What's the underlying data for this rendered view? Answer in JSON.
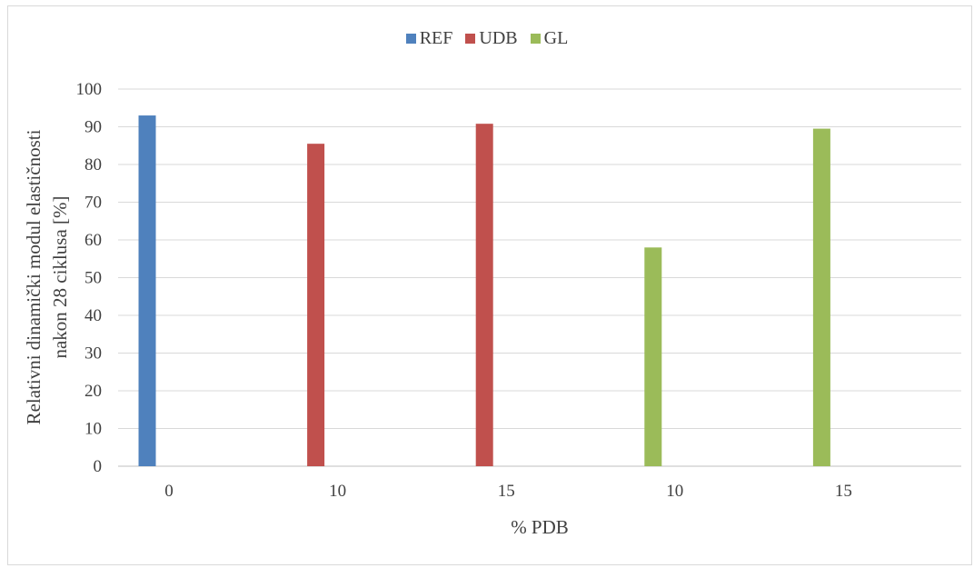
{
  "chart_data": {
    "type": "bar",
    "categories": [
      "0",
      "10",
      "15",
      "10",
      "15"
    ],
    "series": [
      {
        "name": "REF",
        "color": "#4f81bd",
        "values": [
          93,
          null,
          null,
          null,
          null
        ]
      },
      {
        "name": "UDB",
        "color": "#c0504d",
        "values": [
          null,
          85.5,
          90.8,
          null,
          null
        ]
      },
      {
        "name": "GL",
        "color": "#9bbb59",
        "values": [
          null,
          null,
          null,
          58,
          89.5
        ]
      }
    ],
    "title": "",
    "xlabel": "% PDB",
    "ylabel_lines": [
      "Relativni dinamički modul elastičnosti",
      "nakon 28 ciklusa [%]"
    ],
    "ylim": [
      0,
      100
    ],
    "yticks": [
      0,
      10,
      20,
      30,
      40,
      50,
      60,
      70,
      80,
      90,
      100
    ],
    "grid": true,
    "legend_position": "top"
  }
}
